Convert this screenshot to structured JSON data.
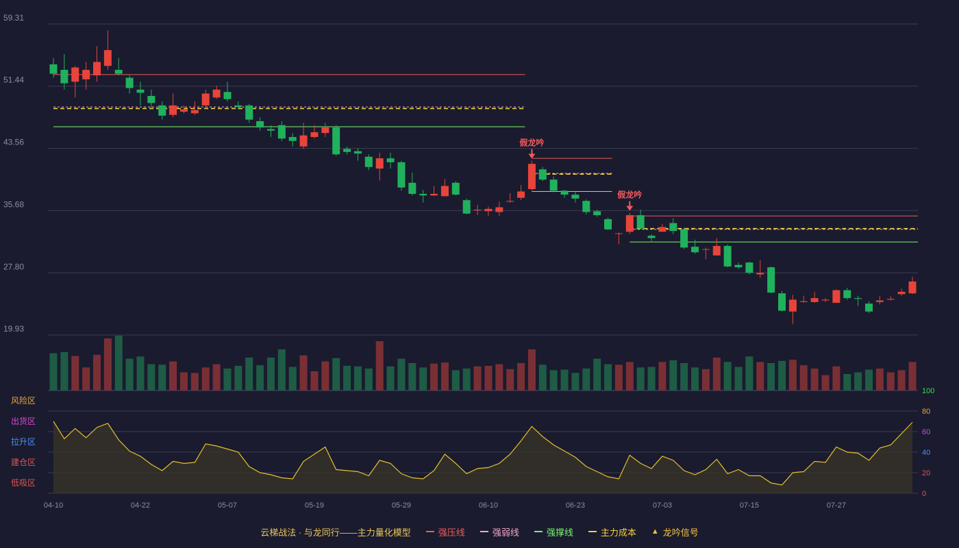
{
  "chart_data": {
    "type": "candlestick",
    "price_axis": {
      "ticks": [
        "59.31",
        "51.44",
        "43.56",
        "35.68",
        "27.80",
        "19.93"
      ],
      "min": 19.93,
      "max": 59.31
    },
    "oscillator_axis": {
      "ticks": [
        "100",
        "80",
        "60",
        "40",
        "20",
        "0"
      ],
      "min": 0,
      "max": 100
    },
    "zones": [
      {
        "label": "风险区",
        "color": "#e8a33b"
      },
      {
        "label": "出货区",
        "color": "#d24bd6"
      },
      {
        "label": "拉升区",
        "color": "#4f8ff0"
      },
      {
        "label": "建仓区",
        "color": "#e0534f"
      },
      {
        "label": "低吸区",
        "color": "#e0534f"
      }
    ],
    "x_ticks": [
      {
        "i": 0,
        "label": "04-10"
      },
      {
        "i": 8,
        "label": "04-22"
      },
      {
        "i": 16,
        "label": "05-07"
      },
      {
        "i": 24,
        "label": "05-19"
      },
      {
        "i": 32,
        "label": "05-29"
      },
      {
        "i": 40,
        "label": "06-10"
      },
      {
        "i": 48,
        "label": "06-23"
      },
      {
        "i": 56,
        "label": "07-03"
      },
      {
        "i": 64,
        "label": "07-15"
      },
      {
        "i": 72,
        "label": "07-27"
      }
    ],
    "candles": [
      [
        54.2,
        53.0,
        55.0,
        52.5
      ],
      [
        53.5,
        51.8,
        55.5,
        51.0
      ],
      [
        52.0,
        53.8,
        54.0,
        50.0
      ],
      [
        52.3,
        53.5,
        54.5,
        51.0
      ],
      [
        52.8,
        54.5,
        56.5,
        52.0
      ],
      [
        54.0,
        56.0,
        58.5,
        53.5
      ],
      [
        53.5,
        53.0,
        55.0,
        52.8
      ],
      [
        52.5,
        51.2,
        52.8,
        50.5
      ],
      [
        51.0,
        50.6,
        52.0,
        49.0
      ],
      [
        50.2,
        49.3,
        51.0,
        48.5
      ],
      [
        49.0,
        47.7,
        49.5,
        47.2
      ],
      [
        47.8,
        49.0,
        50.5,
        47.5
      ],
      [
        48.2,
        48.5,
        49.0,
        48.0
      ],
      [
        48.0,
        48.4,
        49.5,
        47.8
      ],
      [
        49.0,
        50.5,
        51.0,
        48.5
      ],
      [
        50.0,
        51.0,
        51.5,
        49.8
      ],
      [
        50.7,
        49.8,
        52.0,
        49.5
      ],
      [
        49.0,
        48.8,
        49.5,
        48.5
      ],
      [
        49.0,
        47.2,
        49.2,
        46.8
      ],
      [
        47.0,
        46.2,
        47.5,
        45.8
      ],
      [
        46.0,
        45.8,
        46.5,
        45.0
      ],
      [
        46.5,
        44.8,
        47.0,
        44.5
      ],
      [
        45.0,
        44.5,
        45.5,
        43.8
      ],
      [
        43.8,
        45.2,
        46.8,
        43.5
      ],
      [
        45.0,
        45.6,
        46.5,
        44.8
      ],
      [
        45.5,
        46.2,
        46.8,
        45.0
      ],
      [
        46.2,
        42.8,
        46.5,
        42.6
      ],
      [
        43.5,
        43.1,
        43.8,
        42.8
      ],
      [
        43.2,
        42.9,
        43.6,
        42.0
      ],
      [
        42.5,
        41.2,
        42.8,
        40.8
      ],
      [
        41.0,
        42.3,
        43.0,
        39.5
      ],
      [
        42.3,
        41.8,
        43.0,
        41.0
      ],
      [
        41.8,
        38.6,
        42.0,
        38.2
      ],
      [
        39.2,
        37.8,
        40.5,
        37.6
      ],
      [
        37.8,
        37.6,
        38.3,
        36.7
      ],
      [
        37.6,
        37.8,
        38.8,
        37.5
      ],
      [
        37.5,
        38.8,
        39.7,
        37.5
      ],
      [
        39.2,
        37.7,
        39.4,
        37.6
      ],
      [
        37.0,
        35.3,
        37.2,
        35.2
      ],
      [
        35.8,
        35.8,
        36.4,
        35.1
      ],
      [
        35.6,
        35.9,
        36.2,
        35.0
      ],
      [
        35.5,
        36.1,
        36.8,
        35.0
      ],
      [
        36.8,
        36.9,
        37.9,
        36.7
      ],
      [
        37.3,
        38.1,
        38.9,
        37.0
      ],
      [
        38.4,
        41.6,
        42.0,
        38.2
      ],
      [
        40.9,
        39.6,
        41.2,
        39.4
      ],
      [
        39.6,
        38.2,
        40.0,
        38.0
      ],
      [
        38.2,
        37.7,
        38.3,
        37.3
      ],
      [
        37.7,
        37.2,
        38.1,
        36.7
      ],
      [
        36.9,
        35.5,
        37.1,
        35.2
      ],
      [
        35.6,
        35.1,
        35.8,
        34.9
      ],
      [
        34.6,
        33.3,
        34.8,
        33.2
      ],
      [
        32.8,
        32.8,
        32.9,
        31.4
      ],
      [
        33.0,
        35.1,
        35.4,
        32.7
      ],
      [
        35.1,
        33.4,
        35.8,
        33.3
      ],
      [
        32.5,
        32.2,
        32.7,
        31.8
      ],
      [
        33.0,
        33.6,
        34.0,
        33.0
      ],
      [
        34.1,
        33.1,
        34.7,
        32.7
      ],
      [
        33.3,
        31.0,
        33.5,
        30.8
      ],
      [
        31.1,
        30.4,
        32.0,
        30.2
      ],
      [
        30.8,
        30.8,
        31.0,
        29.5
      ],
      [
        30.0,
        31.2,
        32.2,
        30.0
      ],
      [
        31.2,
        28.6,
        31.4,
        28.5
      ],
      [
        28.8,
        28.5,
        29.1,
        28.3
      ],
      [
        29.1,
        27.8,
        29.2,
        27.6
      ],
      [
        27.6,
        27.8,
        29.4,
        27.2
      ],
      [
        28.5,
        25.3,
        28.6,
        25.2
      ],
      [
        25.2,
        23.0,
        25.5,
        22.9
      ],
      [
        22.9,
        24.4,
        25.0,
        21.3
      ],
      [
        24.1,
        24.2,
        24.9,
        24.0
      ],
      [
        24.1,
        24.6,
        25.4,
        24.0
      ],
      [
        24.3,
        24.4,
        24.6,
        24.1
      ],
      [
        24.0,
        25.6,
        25.7,
        24.0
      ],
      [
        25.6,
        24.6,
        25.9,
        24.4
      ],
      [
        24.6,
        24.5,
        24.9,
        23.6
      ],
      [
        23.9,
        22.9,
        24.2,
        22.7
      ],
      [
        24.1,
        24.3,
        24.9,
        23.8
      ],
      [
        24.4,
        24.5,
        24.8,
        24.3
      ],
      [
        25.1,
        25.4,
        25.8,
        24.9
      ],
      [
        25.2,
        26.7,
        27.3,
        25.1
      ]
    ],
    "volume": [
      68,
      70,
      63,
      42,
      65,
      95,
      100,
      58,
      62,
      48,
      47,
      53,
      33,
      32,
      42,
      48,
      40,
      45,
      60,
      46,
      60,
      75,
      43,
      64,
      35,
      53,
      59,
      45,
      44,
      40,
      90,
      44,
      58,
      50,
      42,
      49,
      51,
      37,
      40,
      44,
      45,
      48,
      39,
      50,
      75,
      47,
      37,
      38,
      32,
      40,
      58,
      48,
      47,
      52,
      42,
      43,
      52,
      55,
      50,
      42,
      39,
      60,
      52,
      43,
      62,
      52,
      50,
      54,
      56,
      46,
      40,
      28,
      44,
      30,
      33,
      38,
      40,
      33,
      37,
      52
    ],
    "oscillator": [
      70,
      53,
      63,
      54,
      64,
      68,
      52,
      41,
      36,
      28,
      22,
      31,
      29,
      30,
      48,
      46,
      43,
      40,
      26,
      20,
      18,
      15,
      14,
      31,
      38,
      45,
      23,
      22,
      21,
      17,
      32,
      29,
      19,
      15,
      14,
      22,
      38,
      29,
      19,
      24,
      25,
      29,
      38,
      51,
      65,
      55,
      47,
      41,
      35,
      26,
      21,
      16,
      14,
      37,
      29,
      24,
      36,
      32,
      22,
      18,
      23,
      33,
      19,
      23,
      17,
      17,
      10,
      8,
      20,
      21,
      31,
      30,
      45,
      40,
      39,
      32,
      44,
      47,
      58,
      69
    ],
    "annotations": [
      {
        "text": "假龙吟",
        "i": 44,
        "color": "#f05b5b"
      },
      {
        "text": "假龙吟",
        "i": 53,
        "color": "#f05b5b"
      }
    ],
    "levels": [
      {
        "from": 0,
        "to": 43,
        "strong_pressure": 52.9,
        "weak": 48.8,
        "cost": 48.6,
        "support": 46.3
      },
      {
        "from": 44,
        "to": 51,
        "strong_pressure": 42.3,
        "weak": 40.4,
        "cost": 40.3,
        "support": 38.1
      },
      {
        "from": 53,
        "to": 79,
        "strong_pressure": 35.0,
        "weak": 33.3,
        "cost": 33.4,
        "support": 31.7
      }
    ],
    "legend": [
      {
        "label": "云梯战法 · 与龙同行——主力量化模型",
        "type": "text",
        "color": "#e8c45a"
      },
      {
        "label": "强压线",
        "type": "solid",
        "color": "#f05b5b"
      },
      {
        "label": "强弱线",
        "type": "dash",
        "color": "#f2a7c9"
      },
      {
        "label": "强撑线",
        "type": "solid",
        "color": "#7cf56f"
      },
      {
        "label": "主力成本",
        "type": "dash",
        "color": "#f5d23d"
      },
      {
        "label": "龙吟信号",
        "type": "triangle",
        "color": "#f5c542"
      }
    ],
    "colors": {
      "up": "#e8443a",
      "down": "#20b15d",
      "vol_up": "#7a2f35",
      "vol_down": "#1e5c45",
      "osc_line": "#e6c02c",
      "grid": "#3a3c52",
      "axis_text": "#8a8fa3",
      "osc_axis_top": "#3bdc4b"
    }
  }
}
